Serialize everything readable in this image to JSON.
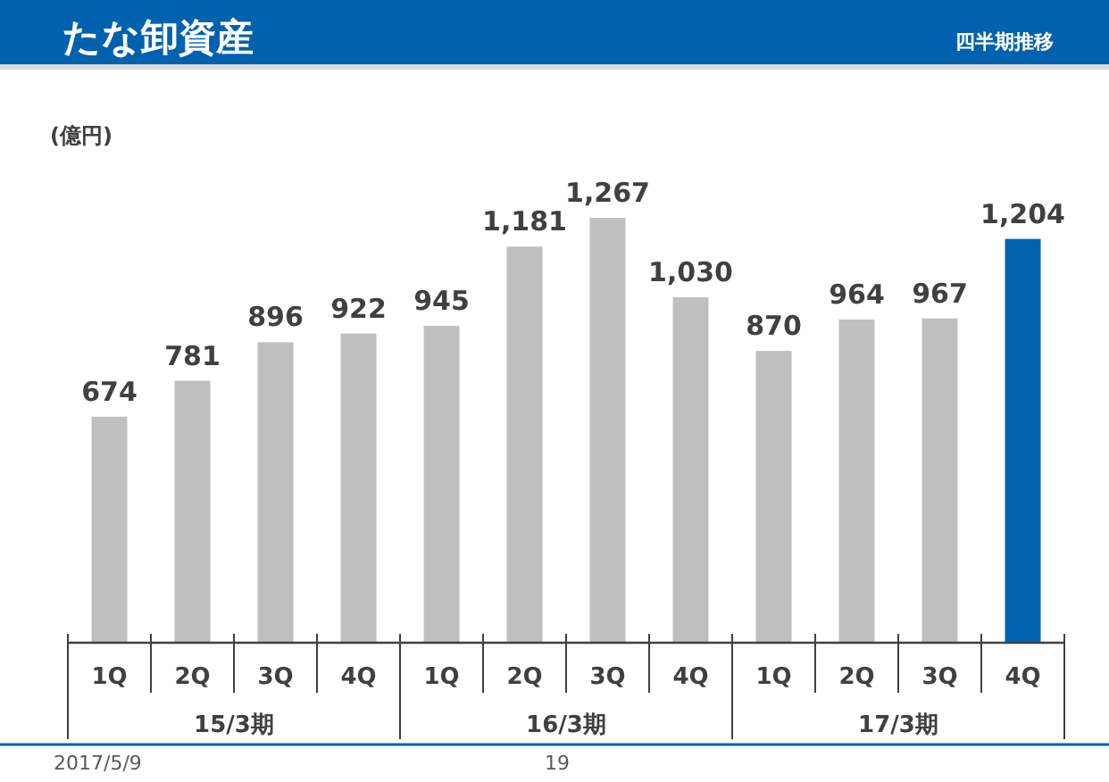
{
  "chart_data": {
    "type": "bar",
    "title": "たな卸資産",
    "subtitle": "四半期推移",
    "ylabel": "(億円)",
    "categories": [
      "1Q",
      "2Q",
      "3Q",
      "4Q",
      "1Q",
      "2Q",
      "3Q",
      "4Q",
      "1Q",
      "2Q",
      "3Q",
      "4Q"
    ],
    "values": [
      674,
      781,
      896,
      922,
      945,
      1181,
      1267,
      1030,
      870,
      964,
      967,
      1204
    ],
    "value_labels": [
      "674",
      "781",
      "896",
      "922",
      "945",
      "1,181",
      "1,267",
      "1,030",
      "870",
      "964",
      "967",
      "1,204"
    ],
    "colors": [
      "#bfbfbf",
      "#bfbfbf",
      "#bfbfbf",
      "#bfbfbf",
      "#bfbfbf",
      "#bfbfbf",
      "#bfbfbf",
      "#bfbfbf",
      "#bfbfbf",
      "#bfbfbf",
      "#bfbfbf",
      "#0063b1"
    ],
    "annotations": [
      "15/3期",
      "16/3期",
      "17/3期",
      "2017/5/9",
      "19"
    ]
  }
}
